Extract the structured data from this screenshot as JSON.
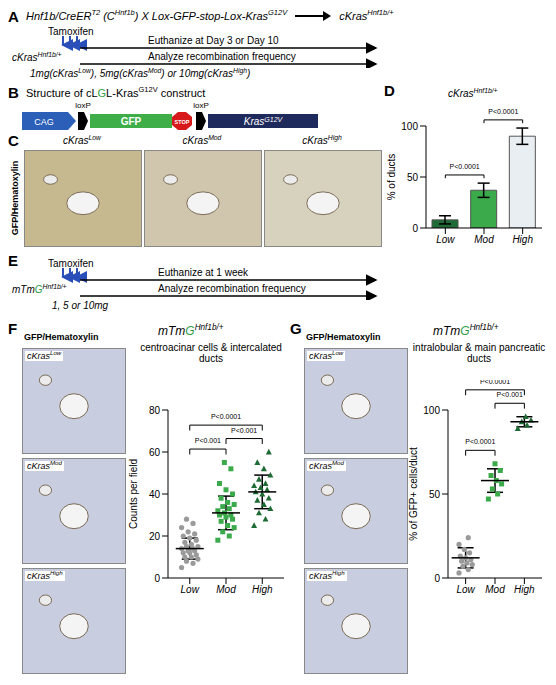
{
  "panel_A": {
    "letter": "A",
    "cross": [
      "Hnf1b/CreER",
      {
        "sup": "T2"
      },
      " (C",
      {
        "sup": "Hnf1b"
      },
      ") X Lox-GFP-stop-Lox-Kras",
      {
        "sup": "G12V"
      }
    ],
    "result": [
      "cKras",
      {
        "sup": "Hnf1b/+"
      }
    ],
    "genotype": [
      "cKras",
      {
        "sup": "Hnf1b/+"
      }
    ],
    "treatment": "Tamoxifen",
    "endpoint": "Euthanize at Day 3 or Day 10",
    "analysis": "Analyze recombination frequency",
    "doses": [
      "1mg(cKras",
      {
        "sup": "Low"
      },
      "), 5mg(cKras",
      {
        "sup": "Mod"
      },
      ") or 10mg(cKras",
      {
        "sup": "High"
      },
      ")"
    ]
  },
  "panel_B": {
    "letter": "B",
    "title": [
      "Structure of cL",
      {
        "text": "G",
        "color": "#2e9e44"
      },
      "L-Kras",
      {
        "sup": "G12V"
      },
      " construct"
    ],
    "promoter": "CAG",
    "lox": "loxP",
    "reporter": "GFP",
    "stop": "STOP",
    "gene": [
      "Kras",
      {
        "sup": "G12V"
      }
    ]
  },
  "panel_C": {
    "letter": "C",
    "stain": "GFP/Hematoxylin",
    "images": [
      [
        "cKras",
        {
          "sup": "Low"
        }
      ],
      [
        "cKras",
        {
          "sup": "Mod"
        }
      ],
      [
        "cKras",
        {
          "sup": "High"
        }
      ]
    ]
  },
  "panel_E": {
    "letter": "E",
    "genotype": [
      "mTm",
      {
        "text": "G",
        "color": "#2e9e44"
      },
      {
        "sup": "Hnf1b/+"
      }
    ],
    "treatment": "Tamoxifen",
    "endpoint": "Euthanize at 1 week",
    "analysis": "Analyze recombination frequency",
    "doses": "1, 5 or 10mg"
  },
  "panel_F_images": {
    "stain": "GFP/Hematoxylin",
    "images": [
      [
        "cKras",
        {
          "sup": "Low"
        }
      ],
      [
        "cKras",
        {
          "sup": "Mod"
        }
      ],
      [
        "cKras",
        {
          "sup": "High"
        }
      ]
    ]
  },
  "panel_G_images": {
    "stain": "GFP/Hematoxylin",
    "images": [
      [
        "cKras",
        {
          "sup": "Low"
        }
      ],
      [
        "cKras",
        {
          "sup": "Mod"
        }
      ],
      [
        "cKras",
        {
          "sup": "High"
        }
      ]
    ]
  },
  "chart_data": [
    {
      "letter": "D",
      "type": "bar",
      "title": [
        "cKras",
        {
          "sup": "Hnf1b/+"
        }
      ],
      "categories": [
        "Low",
        "Mod",
        "High"
      ],
      "values": [
        8,
        37,
        90
      ],
      "errors": [
        4,
        7,
        8
      ],
      "colors": [
        "#1e6b35",
        "#3aaa4a",
        "#e8eef2"
      ],
      "ylabel": "% of ducts",
      "ylim": [
        0,
        100
      ],
      "yticks": [
        0,
        50,
        100
      ],
      "comparisons": [
        {
          "pair": [
            "Low",
            "Mod"
          ],
          "label": "P<0.0001"
        },
        {
          "pair": [
            "Mod",
            "High"
          ],
          "label": "P<0.0001"
        }
      ]
    },
    {
      "letter": "F",
      "type": "scatter",
      "title": [
        "mTm",
        {
          "text": "G",
          "color": "#2e9e44"
        },
        {
          "sup": "Hnf1b/+"
        }
      ],
      "subtitle": "centroacinar cells & intercalated ducts",
      "ylabel": "Counts per field",
      "ylim": [
        0,
        80
      ],
      "yticks": [
        0,
        20,
        40,
        60,
        80
      ],
      "series": [
        {
          "name": "Low",
          "color": "#9a9a9a",
          "marker": "circle",
          "values": [
            5,
            7,
            8,
            9,
            10,
            10,
            11,
            12,
            12,
            13,
            13,
            14,
            14,
            15,
            15,
            16,
            17,
            18,
            19,
            20,
            21,
            22,
            24,
            26,
            28
          ],
          "mean": 14,
          "sd": 5
        },
        {
          "name": "Mod",
          "color": "#3aaa4a",
          "marker": "square",
          "values": [
            18,
            20,
            22,
            24,
            25,
            27,
            28,
            29,
            30,
            30,
            31,
            32,
            33,
            34,
            35,
            36,
            38,
            40,
            42,
            45,
            52,
            55
          ],
          "mean": 31,
          "sd": 8
        },
        {
          "name": "High",
          "color": "#1e6b35",
          "marker": "triangle",
          "values": [
            25,
            28,
            31,
            33,
            35,
            37,
            38,
            40,
            41,
            42,
            43,
            44,
            45,
            47,
            49,
            52,
            55,
            60
          ],
          "mean": 41,
          "sd": 8
        }
      ],
      "comparisons": [
        {
          "pair": [
            "Low",
            "Mod"
          ],
          "label": "P<0.001"
        },
        {
          "pair": [
            "Mod",
            "High"
          ],
          "label": "P<0.001"
        },
        {
          "pair": [
            "Low",
            "High"
          ],
          "label": "P<0.0001"
        }
      ]
    },
    {
      "letter": "G",
      "type": "scatter",
      "title": [
        "mTm",
        {
          "text": "G",
          "color": "#2e9e44"
        },
        {
          "sup": "Hnf1b/+"
        }
      ],
      "subtitle": "intralobular & main pancreatic ducts",
      "ylabel": "% of GFP+ cells/duct",
      "ylim": [
        0,
        100
      ],
      "yticks": [
        0,
        50,
        100
      ],
      "series": [
        {
          "name": "Low",
          "color": "#9a9a9a",
          "marker": "circle",
          "values": [
            3,
            5,
            7,
            8,
            9,
            10,
            11,
            12,
            13,
            15,
            17,
            20,
            24
          ],
          "mean": 12,
          "sd": 6
        },
        {
          "name": "Mod",
          "color": "#3aaa4a",
          "marker": "square",
          "values": [
            47,
            50,
            53,
            56,
            58,
            61,
            64,
            68
          ],
          "mean": 58,
          "sd": 7
        },
        {
          "name": "High",
          "color": "#1e6b35",
          "marker": "triangle",
          "values": [
            89,
            91,
            93,
            94,
            96
          ],
          "mean": 93,
          "sd": 3
        }
      ],
      "comparisons": [
        {
          "pair": [
            "Low",
            "Mod"
          ],
          "label": "P<0.0001"
        },
        {
          "pair": [
            "Mod",
            "High"
          ],
          "label": "P<0.001"
        },
        {
          "pair": [
            "Low",
            "High"
          ],
          "label": "P<0.0001"
        }
      ]
    }
  ]
}
